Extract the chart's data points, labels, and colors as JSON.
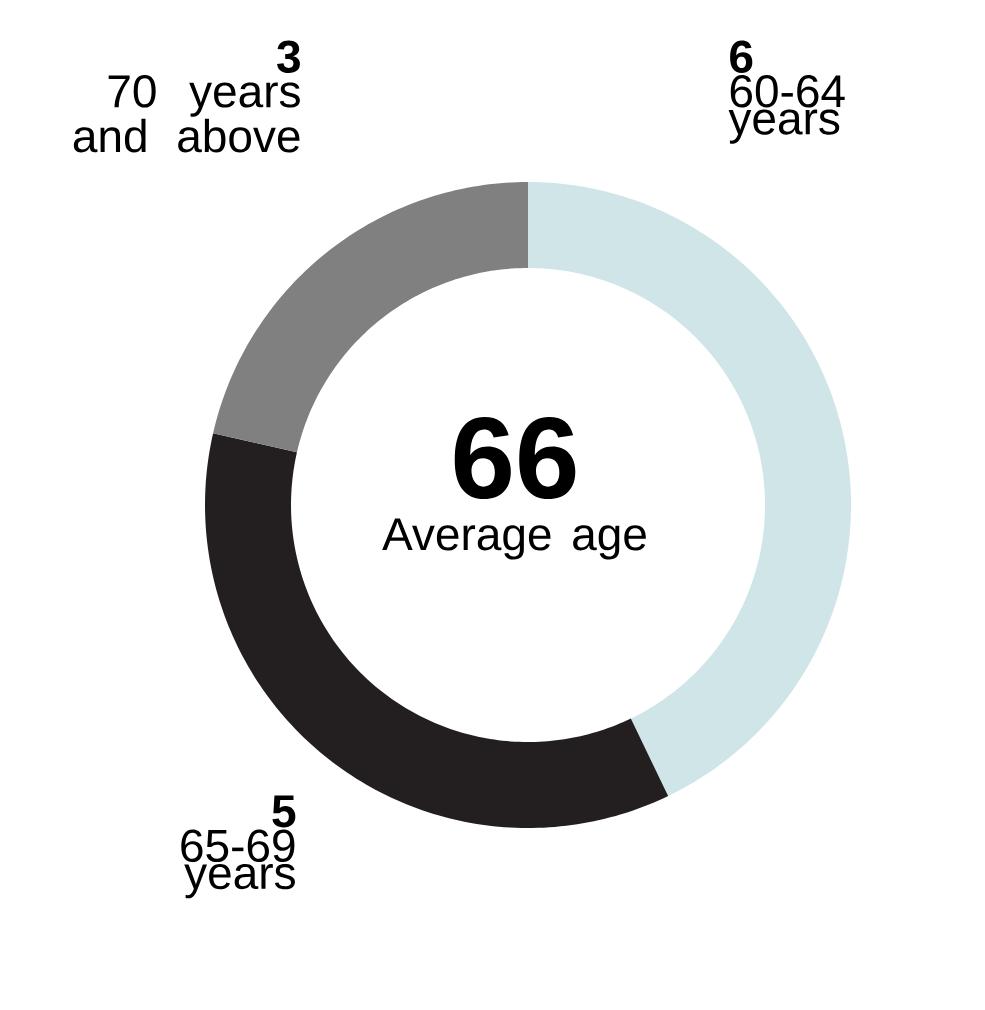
{
  "chart_data": {
    "type": "donut",
    "categories": [
      "60-64 years",
      "65-69 years",
      "70 years and above"
    ],
    "values": [
      6,
      5,
      3
    ],
    "colors": [
      "#d0e5e8",
      "#231f20",
      "#808080"
    ],
    "data_labels": true,
    "annotations": [
      "66",
      "Average age"
    ]
  }
}
